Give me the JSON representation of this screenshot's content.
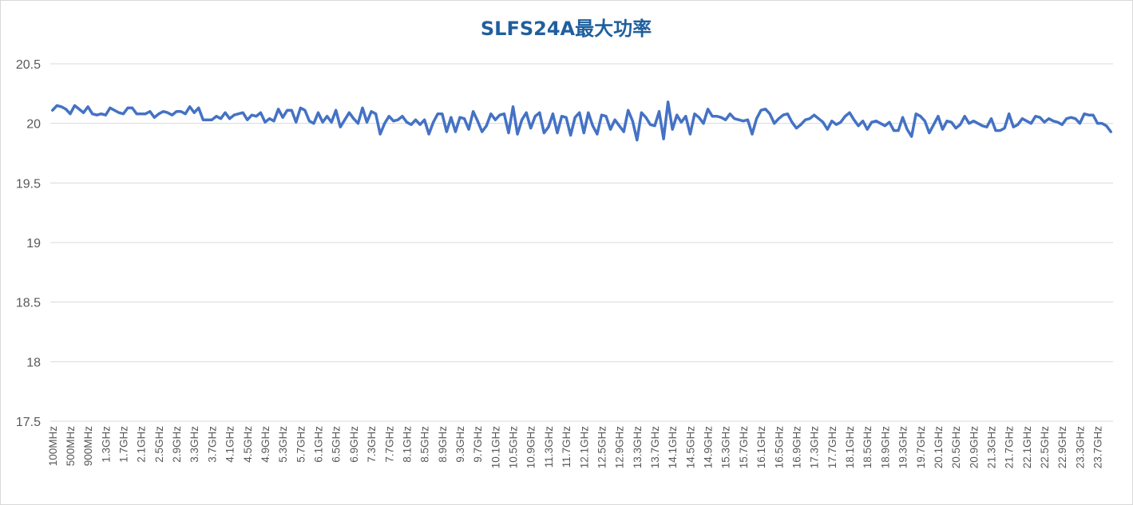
{
  "chart_data": {
    "type": "line",
    "title": "SLFS24A最大功率",
    "xlabel": "",
    "ylabel": "",
    "ylim": [
      17.5,
      20.5
    ],
    "y_ticks": [
      17.5,
      18,
      18.5,
      19,
      19.5,
      20,
      20.5
    ],
    "y_tick_labels": [
      "17.5",
      "18",
      "18.5",
      "19",
      "19.5",
      "20",
      "20.5"
    ],
    "x_tick_labels": [
      "100MHz",
      "500MHz",
      "900MHz",
      "1.3GHz",
      "1.7GHz",
      "2.1GHz",
      "2.5GHz",
      "2.9GHz",
      "3.3GHz",
      "3.7GHz",
      "4.1GHz",
      "4.5GHz",
      "4.9GHz",
      "5.3GHz",
      "5.7GHz",
      "6.1GHz",
      "6.5GHz",
      "6.9GHz",
      "7.3GHz",
      "7.7GHz",
      "8.1GHz",
      "8.5GHz",
      "8.9GHz",
      "9.3GHz",
      "9.7GHz",
      "10.1GHz",
      "10.5GHz",
      "10.9GHz",
      "11.3GHz",
      "11.7GHz",
      "12.1GHz",
      "12.5GHz",
      "12.9GHz",
      "13.3GHz",
      "13.7GHz",
      "14.1GHz",
      "14.5GHz",
      "14.9GHz",
      "15.3GHz",
      "15.7GHz",
      "16.1GHz",
      "16.5GHz",
      "16.9GHz",
      "17.3GHz",
      "17.7GHz",
      "18.1GHz",
      "18.5GHz",
      "18.9GHz",
      "19.3GHz",
      "19.7GHz",
      "20.1GHz",
      "20.5GHz",
      "20.9GHz",
      "21.3GHz",
      "21.7GHz",
      "22.1GHz",
      "22.5GHz",
      "22.9GHz",
      "23.3GHz",
      "23.7GHz"
    ],
    "series": [
      {
        "color": "#4472c4",
        "values": [
          20.11,
          20.15,
          20.14,
          20.12,
          20.08,
          20.15,
          20.12,
          20.09,
          20.14,
          20.08,
          20.07,
          20.08,
          20.07,
          20.13,
          20.11,
          20.09,
          20.08,
          20.13,
          20.13,
          20.08,
          20.08,
          20.08,
          20.1,
          20.05,
          20.08,
          20.1,
          20.09,
          20.07,
          20.1,
          20.1,
          20.08,
          20.14,
          20.09,
          20.13,
          20.03,
          20.03,
          20.03,
          20.06,
          20.04,
          20.09,
          20.04,
          20.07,
          20.08,
          20.09,
          20.03,
          20.07,
          20.06,
          20.09,
          20.01,
          20.04,
          20.02,
          20.12,
          20.05,
          20.11,
          20.11,
          20.01,
          20.13,
          20.11,
          20.02,
          20,
          20.09,
          20.01,
          20.06,
          20.01,
          20.11,
          19.97,
          20.03,
          20.09,
          20.04,
          20,
          20.13,
          20.01,
          20.1,
          20.08,
          19.91,
          20,
          20.06,
          20.02,
          20.03,
          20.06,
          20.01,
          19.99,
          20.03,
          19.99,
          20.03,
          19.91,
          20.01,
          20.08,
          20.08,
          19.93,
          20.05,
          19.93,
          20.05,
          20.04,
          19.95,
          20.1,
          20.02,
          19.93,
          19.98,
          20.08,
          20.03,
          20.07,
          20.08,
          19.92,
          20.14,
          19.91,
          20.03,
          20.09,
          19.96,
          20.06,
          20.09,
          19.92,
          19.97,
          20.08,
          19.92,
          20.06,
          20.05,
          19.9,
          20.05,
          20.09,
          19.92,
          20.09,
          19.98,
          19.91,
          20.07,
          20.06,
          19.95,
          20.03,
          19.98,
          19.93,
          20.11,
          20.02,
          19.86,
          20.09,
          20.05,
          19.99,
          19.98,
          20.1,
          19.87,
          20.18,
          19.95,
          20.07,
          20.01,
          20.06,
          19.91,
          20.08,
          20.05,
          20,
          20.12,
          20.06,
          20.06,
          20.05,
          20.03,
          20.08,
          20.04,
          20.03,
          20.02,
          20.03,
          19.91,
          20.04,
          20.11,
          20.12,
          20.08,
          20,
          20.04,
          20.07,
          20.08,
          20.01,
          19.96,
          19.99,
          20.03,
          20.04,
          20.07,
          20.04,
          20.01,
          19.95,
          20.02,
          19.99,
          20.01,
          20.06,
          20.09,
          20.03,
          19.98,
          20.02,
          19.95,
          20.01,
          20.02,
          20,
          19.98,
          20.01,
          19.94,
          19.94,
          20.05,
          19.95,
          19.89,
          20.08,
          20.06,
          20.02,
          19.92,
          19.99,
          20.06,
          19.95,
          20.02,
          20.01,
          19.96,
          19.99,
          20.06,
          20,
          20.02,
          20,
          19.98,
          19.97,
          20.04,
          19.94,
          19.94,
          19.96,
          20.08,
          19.97,
          19.99,
          20.04,
          20.02,
          20,
          20.06,
          20.05,
          20.01,
          20.04,
          20.02,
          20.01,
          19.99,
          20.04,
          20.05,
          20.04,
          20,
          20.08,
          20.07,
          20.07,
          20,
          20,
          19.98,
          19.93
        ]
      }
    ],
    "grid": true,
    "legend": "none",
    "gridline_color": "#d9d9d9",
    "title_color": "#1f5f9e",
    "tick_label_color": "#595959"
  }
}
